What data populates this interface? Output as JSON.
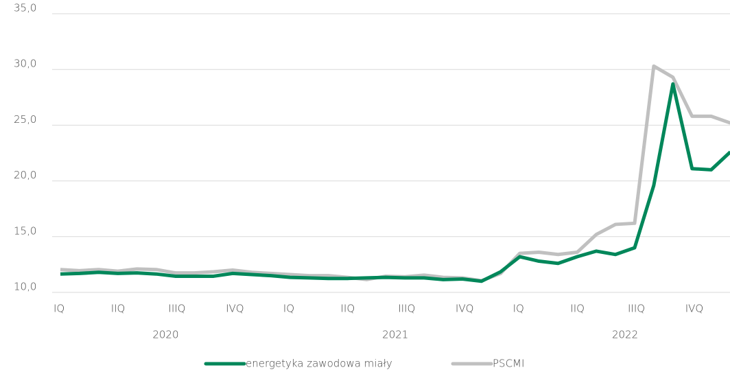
{
  "chart_data": {
    "type": "line",
    "categories": [
      "IQ",
      null,
      null,
      "IIQ",
      null,
      null,
      "IIIQ",
      null,
      null,
      "IVQ",
      null,
      null,
      "IQ",
      null,
      null,
      "IIQ",
      null,
      null,
      "IIIQ",
      null,
      null,
      "IVQ",
      null,
      null,
      "IQ",
      null,
      null,
      "IIQ",
      null,
      null,
      "IIIQ",
      null,
      null,
      "IVQ",
      null,
      null
    ],
    "year_labels": [
      "2020",
      "2021",
      "2022"
    ],
    "series": [
      {
        "name": "energetyka zawodowa miały",
        "color": "#00875a",
        "values": [
          11.65,
          11.7,
          11.8,
          11.7,
          11.75,
          11.65,
          11.45,
          11.45,
          11.45,
          11.7,
          11.6,
          11.5,
          11.35,
          11.3,
          11.25,
          11.25,
          11.3,
          11.35,
          11.3,
          11.3,
          11.15,
          11.2,
          11.0,
          11.85,
          13.2,
          12.8,
          12.6,
          13.2,
          13.7,
          13.4,
          14.0,
          19.6,
          28.7,
          21.1,
          21.0,
          22.6
        ]
      },
      {
        "name": "PSCMI",
        "color": "#c0c0c0",
        "values": [
          12.05,
          11.95,
          12.05,
          11.9,
          12.1,
          12.05,
          11.75,
          11.75,
          11.85,
          12.0,
          11.8,
          11.7,
          11.6,
          11.5,
          11.5,
          11.35,
          11.15,
          11.45,
          11.4,
          11.55,
          11.35,
          11.3,
          11.05,
          11.7,
          13.5,
          13.6,
          13.4,
          13.6,
          15.2,
          16.1,
          16.2,
          30.3,
          29.3,
          25.8,
          25.8,
          25.2
        ]
      }
    ],
    "ylim": [
      10,
      35
    ],
    "yticks": [
      {
        "value": 10,
        "label": "10,0"
      },
      {
        "value": 15,
        "label": "15,0"
      },
      {
        "value": 20,
        "label": "20,0"
      },
      {
        "value": 25,
        "label": "25,0"
      },
      {
        "value": 30,
        "label": "30,0"
      },
      {
        "value": 35,
        "label": "35,0"
      }
    ],
    "grid": true,
    "legend": "bottom"
  }
}
